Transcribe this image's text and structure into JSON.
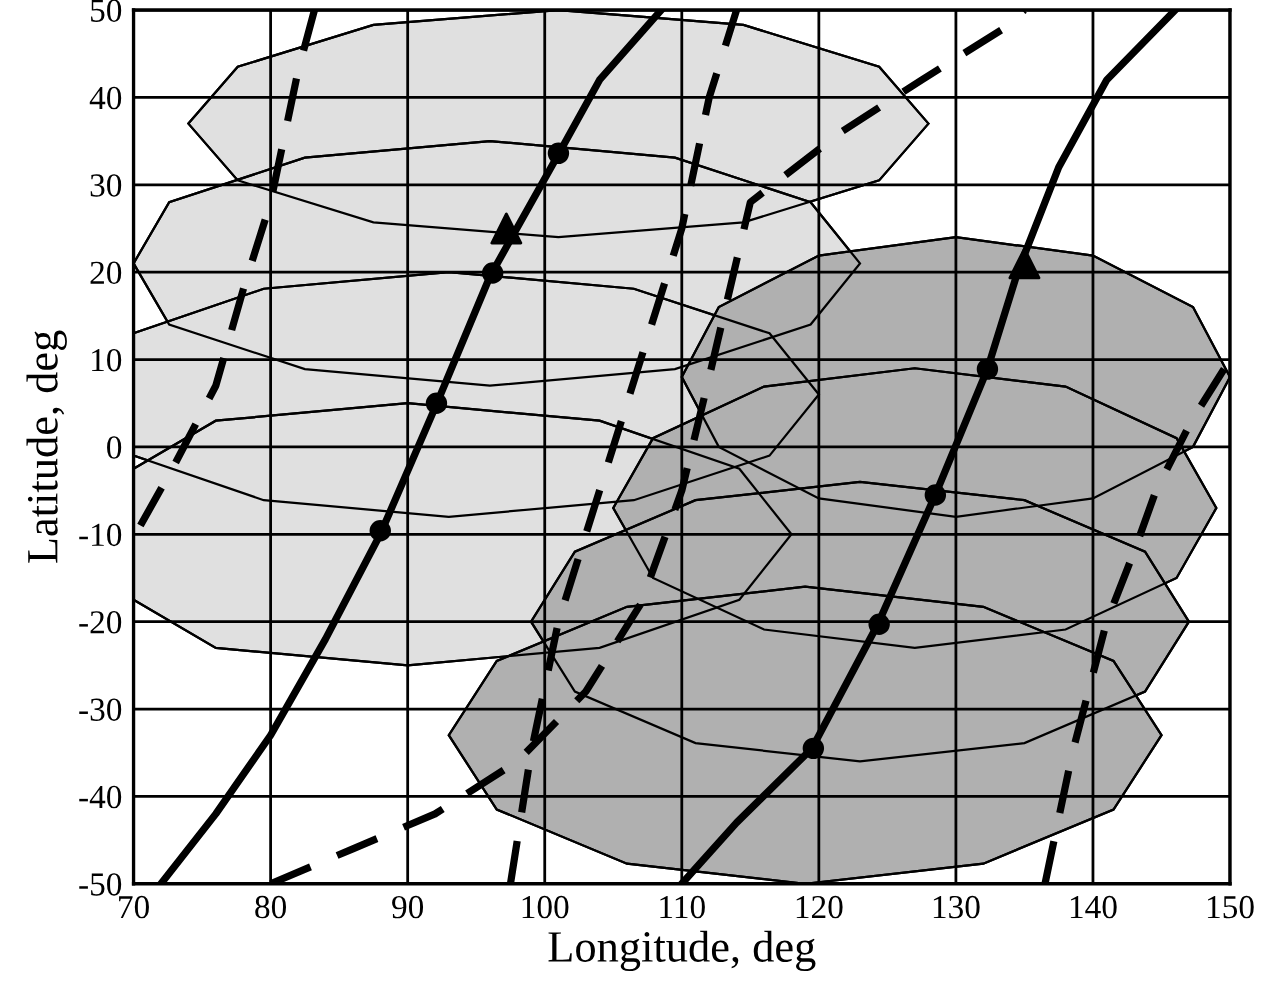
{
  "chart_data": {
    "type": "line",
    "xlabel": "Longitude, deg",
    "ylabel": "Latitude, deg",
    "xlim": [
      70,
      150
    ],
    "ylim": [
      -50,
      50
    ],
    "xticks": [
      70,
      80,
      90,
      100,
      110,
      120,
      130,
      140,
      150
    ],
    "yticks": [
      -50,
      -40,
      -30,
      -20,
      -10,
      0,
      10,
      20,
      30,
      40,
      50
    ],
    "grid": true,
    "legend": false,
    "series": [
      {
        "type": "area",
        "color": "#e0e0e0",
        "x": [
          128,
          124.4,
          114.5,
          101,
          87.5,
          77.6,
          74,
          77.6,
          87.5,
          101,
          114.5,
          124.4
        ],
        "values": [
          37,
          43.5,
          48.3,
          50,
          48.3,
          43.5,
          37,
          30.5,
          25.7,
          24,
          25.7,
          30.5
        ]
      },
      {
        "type": "area",
        "color": "#e0e0e0",
        "x": [
          123,
          119.4,
          109.5,
          96,
          82.5,
          72.6,
          70,
          72.6,
          82.5,
          96,
          109.5,
          119.4
        ],
        "values": [
          21,
          28,
          33.1,
          35,
          33.1,
          28,
          21,
          14,
          8.9,
          7,
          8.9,
          14
        ]
      },
      {
        "type": "area",
        "color": "#e0e0e0",
        "x": [
          120,
          116.4,
          106.5,
          93,
          79.5,
          70,
          70,
          70,
          79.5,
          93,
          106.5,
          116.4
        ],
        "values": [
          6,
          13,
          18.1,
          20,
          18.1,
          13,
          6,
          -1,
          -6.1,
          -8,
          -6.1,
          -1
        ]
      },
      {
        "type": "area",
        "color": "#e0e0e0",
        "x": [
          118,
          114.2,
          104,
          90,
          76,
          70,
          70,
          70,
          76,
          90,
          104,
          114.2
        ],
        "values": [
          -10,
          -2.5,
          3,
          5,
          3,
          -2.5,
          -10,
          -17.5,
          -23,
          -25,
          -23,
          -17.5
        ]
      },
      {
        "type": "area",
        "color": "#b0b0b0",
        "x": [
          150,
          147.3,
          140,
          130,
          120,
          112.7,
          110,
          112.7,
          120,
          130,
          140,
          147.3
        ],
        "values": [
          8,
          16,
          21.9,
          24,
          21.9,
          16,
          8,
          0,
          -5.9,
          -8,
          -5.9,
          0
        ]
      },
      {
        "type": "area",
        "color": "#b0b0b0",
        "x": [
          149,
          146.1,
          138,
          127,
          116,
          107.9,
          105,
          107.9,
          116,
          127,
          138,
          146.1
        ],
        "values": [
          -7,
          1,
          6.9,
          9,
          6.9,
          1,
          -7,
          -15,
          -20.9,
          -23,
          -20.9,
          -15
        ]
      },
      {
        "type": "area",
        "color": "#b0b0b0",
        "x": [
          147,
          143.8,
          135,
          123,
          111,
          102.2,
          99,
          102.2,
          111,
          123,
          135,
          143.8
        ],
        "values": [
          -20,
          -12,
          -6.1,
          -4,
          -6.1,
          -12,
          -20,
          -28,
          -33.9,
          -36,
          -33.9,
          -28
        ]
      },
      {
        "type": "area",
        "color": "#b0b0b0",
        "x": [
          145,
          141.5,
          132,
          119,
          106,
          96.5,
          93,
          96.5,
          106,
          119,
          132,
          141.5
        ],
        "values": [
          -33,
          -24.5,
          -18.3,
          -16,
          -18.3,
          -24.5,
          -33,
          -41.5,
          -47.7,
          -50,
          -47.7,
          -41.5
        ]
      },
      {
        "color": "#000000",
        "line_style": "dashed",
        "x": [
          70.5,
          73,
          76,
          78,
          80,
          82,
          83.2
        ],
        "values": [
          -9,
          -2,
          7,
          18,
          28,
          43,
          50
        ]
      },
      {
        "color": "#000000",
        "line_style": "dashed",
        "x": [
          80,
          86,
          92,
          98,
          103,
          107,
          110,
          112,
          115,
          121.6,
          127.5,
          133.3,
          135
        ],
        "values": [
          -50,
          -46,
          -42,
          -36,
          -28,
          -18,
          -5,
          8,
          28,
          36,
          42,
          47.7,
          50
        ]
      },
      {
        "color": "#000000",
        "line_style": "dashed",
        "x": [
          97.5,
          99,
          101,
          104,
          107,
          110,
          112,
          114
        ],
        "values": [
          -50,
          -35,
          -20,
          -5,
          10,
          25,
          40,
          50
        ]
      },
      {
        "color": "#000000",
        "line_style": "dashed",
        "x": [
          136.5,
          138.5,
          141,
          143,
          144.6,
          147.2,
          150
        ],
        "values": [
          -50,
          -35,
          -20,
          -12,
          -5,
          3,
          10
        ]
      },
      {
        "color": "#000000",
        "line_style": "solid",
        "x": [
          72,
          76,
          80,
          84,
          88,
          92,
          96,
          101,
          104,
          108.5
        ],
        "values": [
          -50,
          -42,
          -33,
          -22,
          -10,
          4.5,
          19.5,
          33.5,
          42,
          50
        ]
      },
      {
        "color": "#000000",
        "line_style": "solid",
        "x": [
          110,
          114,
          119.5,
          124.3,
          128.5,
          132.3,
          134.5,
          137.5,
          141,
          146
        ],
        "values": [
          -50,
          -43,
          -34.5,
          -20.3,
          -5.5,
          8.9,
          20,
          32,
          42,
          50
        ]
      },
      {
        "type": "scatter",
        "color": "#000000",
        "marker": "circle",
        "x": [
          88,
          92.1,
          96.2,
          101,
          119.6,
          124.4,
          128.5,
          132.3
        ],
        "values": [
          -9.6,
          5,
          19.9,
          33.6,
          -34.5,
          -20.3,
          -5.5,
          8.9
        ]
      },
      {
        "type": "scatter",
        "color": "#000000",
        "marker": "triangle",
        "x": [
          97.2,
          135
        ],
        "values": [
          25,
          21
        ]
      }
    ]
  }
}
